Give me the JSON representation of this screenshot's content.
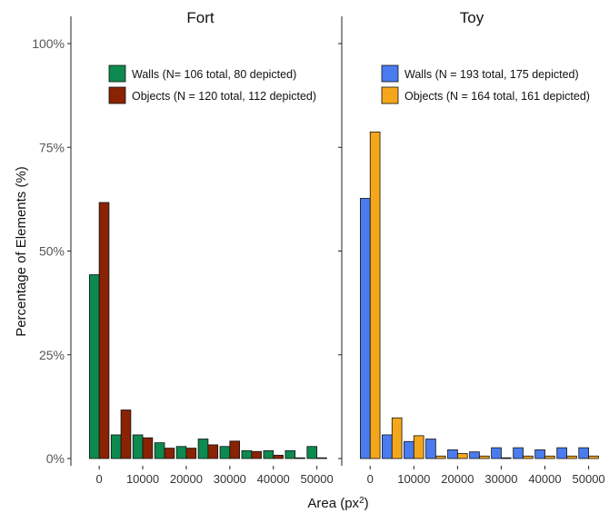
{
  "chart_data": {
    "type": "bar",
    "ylabel": "Percentage of Elements (%)",
    "xlabel_main": "Area (px",
    "xlabel_sup": "2",
    "xlabel_tail": ")",
    "ylim": [
      0,
      100
    ],
    "yticks": [
      0,
      25,
      50,
      75,
      100
    ],
    "ytick_labels": [
      "0%",
      "25%",
      "50%",
      "75%",
      "100%"
    ],
    "xticks": [
      0,
      10000,
      20000,
      30000,
      40000,
      50000
    ],
    "xtick_labels": [
      "0",
      "10000",
      "20000",
      "30000",
      "40000",
      "50000"
    ],
    "bin_width": 5000,
    "bin_centers": [
      0,
      5000,
      10000,
      15000,
      20000,
      25000,
      30000,
      35000,
      40000,
      45000,
      50000
    ],
    "panels": [
      {
        "title": "Fort",
        "legend_position": "top-right",
        "series": [
          {
            "name": "Walls (N= 106 total, 80 depicted)",
            "color": "#0d8a4f",
            "values": [
              44.3,
              5.7,
              5.7,
              3.8,
              2.9,
              4.7,
              2.9,
              1.9,
              1.9,
              1.9,
              2.9
            ]
          },
          {
            "name": "Objects (N = 120 total, 112 depicted)",
            "color": "#8a2204",
            "values": [
              61.7,
              11.7,
              5.0,
              2.5,
              2.5,
              3.3,
              4.2,
              1.7,
              0.8,
              0.0,
              0.0
            ]
          }
        ]
      },
      {
        "title": "Toy",
        "legend_position": "top-right",
        "series": [
          {
            "name": "Walls (N = 193 total, 175 depicted)",
            "color": "#4a7cf0",
            "values": [
              62.7,
              5.7,
              4.1,
              4.7,
              2.1,
              1.6,
              2.6,
              2.6,
              2.1,
              2.6,
              2.6
            ]
          },
          {
            "name": "Objects (N = 164 total, 161 depicted)",
            "color": "#f5a71c",
            "values": [
              78.7,
              9.8,
              5.5,
              0.6,
              1.2,
              0.6,
              0.0,
              0.6,
              0.6,
              0.6,
              0.6
            ]
          }
        ]
      }
    ]
  }
}
